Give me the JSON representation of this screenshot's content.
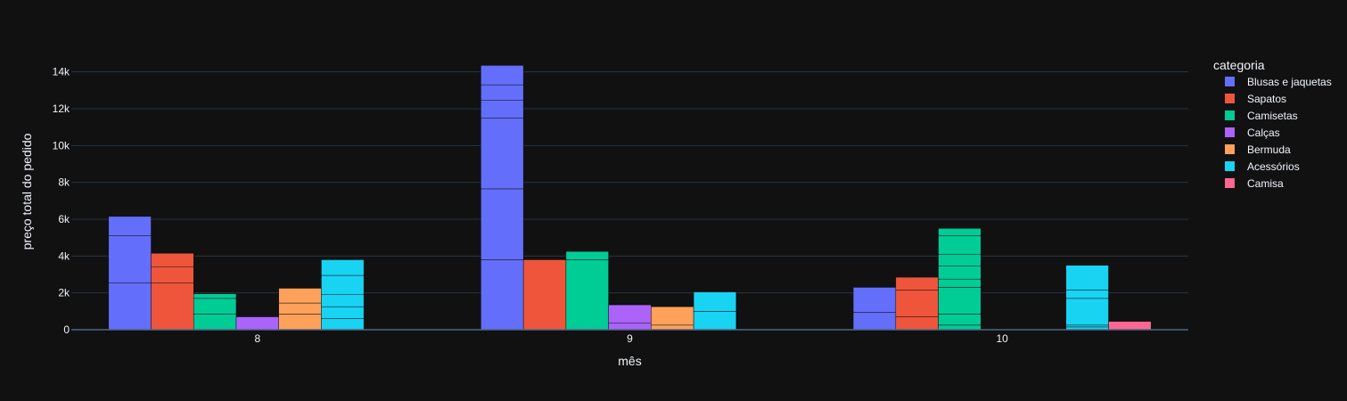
{
  "chart_data": {
    "type": "bar",
    "barmode": "group-stacked",
    "xlabel": "mês",
    "ylabel": "preço total do pedido",
    "categories": [
      "8",
      "9",
      "10"
    ],
    "ylim": [
      0,
      15000
    ],
    "yticks": [
      0,
      2000,
      4000,
      6000,
      8000,
      10000,
      12000,
      14000
    ],
    "ytick_labels": [
      "0",
      "2k",
      "4k",
      "6k",
      "8k",
      "10k",
      "12k",
      "14k"
    ],
    "grid": true,
    "legend": {
      "title": "categoria",
      "placement": "right"
    },
    "series": [
      {
        "name": "Blusas e jaquetas",
        "color": "#636efa",
        "segments": [
          [
            2550,
            2550,
            1050
          ],
          [
            3800,
            3850,
            3850,
            950,
            850,
            1050
          ],
          [
            950,
            1350
          ]
        ]
      },
      {
        "name": "Sapatos",
        "color": "#ef553b",
        "segments": [
          [
            2550,
            850,
            750
          ],
          [
            3800
          ],
          [
            700,
            1450,
            700
          ]
        ]
      },
      {
        "name": "Camisetas",
        "color": "#00cc96",
        "segments": [
          [
            850,
            850,
            250
          ],
          [
            3800,
            450
          ],
          [
            250,
            600,
            1450,
            450,
            700,
            650,
            1000,
            400
          ]
        ]
      },
      {
        "name": "Calças",
        "color": "#ab63fa",
        "segments": [
          [
            700
          ],
          [
            350,
            1000
          ],
          [
            0
          ]
        ]
      },
      {
        "name": "Bermuda",
        "color": "#ffa15a",
        "segments": [
          [
            850,
            600,
            800
          ],
          [
            250,
            1000
          ],
          [
            0
          ]
        ]
      },
      {
        "name": "Acessórios",
        "color": "#19d3f3",
        "segments": [
          [
            600,
            650,
            650,
            1050,
            850
          ],
          [
            1000,
            1050
          ],
          [
            150,
            100,
            1450,
            450,
            1350
          ]
        ]
      },
      {
        "name": "Camisa",
        "color": "#ff6692",
        "segments": [
          [
            0
          ],
          [
            0
          ],
          [
            450
          ]
        ]
      }
    ]
  }
}
